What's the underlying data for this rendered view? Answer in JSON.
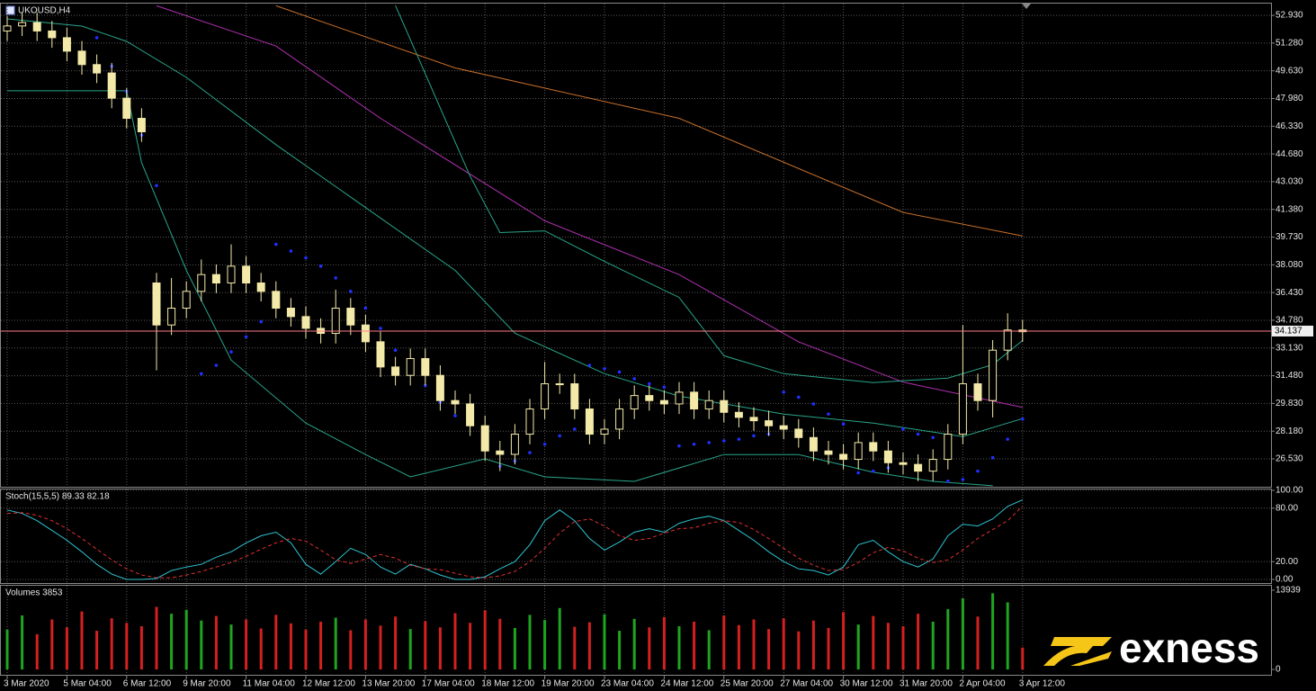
{
  "chart_data": [
    {
      "type": "candlestick",
      "title": "UKOUSD,H4",
      "categories": [
        "3 Mar 2020",
        null,
        null,
        null,
        "5 Mar 04:00",
        null,
        null,
        null,
        "6 Mar 12:00",
        null,
        null,
        null,
        "9 Mar 20:00",
        null,
        null,
        null,
        "11 Mar 04:00",
        null,
        null,
        null,
        "12 Mar 12:00",
        null,
        null,
        null,
        "13 Mar 20:00",
        null,
        null,
        null,
        "17 Mar 04:00",
        null,
        null,
        null,
        "18 Mar 12:00",
        null,
        null,
        null,
        "19 Mar 20:00",
        null,
        null,
        null,
        "23 Mar 04:00",
        null,
        null,
        null,
        "24 Mar 12:00",
        null,
        null,
        null,
        "25 Mar 20:00",
        null,
        null,
        null,
        "27 Mar 04:00",
        null,
        null,
        null,
        "30 Mar 12:00",
        null,
        null,
        null,
        "31 Mar 20:00",
        null,
        null,
        null,
        "2 Apr 04:00",
        null,
        null,
        null,
        "3 Apr 12:00"
      ],
      "open": [
        52.0,
        52.3,
        52.5,
        52.0,
        51.6,
        50.8,
        50.0,
        49.5,
        48.0,
        46.8,
        37.0,
        34.5,
        35.5,
        36.5,
        37.5,
        37.0,
        38.0,
        37.0,
        36.5,
        35.5,
        35.0,
        34.3,
        34.0,
        35.5,
        34.5,
        33.5,
        32.0,
        31.5,
        32.5,
        31.5,
        30.0,
        29.8,
        28.5,
        27.0,
        26.8,
        28.0,
        29.5,
        31.0,
        31.0,
        29.5,
        28.0,
        28.3,
        29.5,
        30.3,
        30.0,
        29.8,
        30.5,
        29.5,
        30.0,
        29.3,
        29.0,
        28.8,
        28.5,
        28.3,
        27.8,
        27.0,
        26.8,
        26.5,
        27.5,
        27.0,
        26.3,
        26.2,
        25.8,
        26.5,
        28.0,
        31.0,
        30.0,
        33.0,
        34.2
      ],
      "high": [
        52.9,
        53.1,
        53.1,
        52.6,
        52.2,
        51.4,
        50.6,
        50.1,
        48.6,
        47.4,
        37.6,
        37.3,
        37.1,
        38.4,
        38.1,
        39.3,
        38.6,
        37.6,
        37.1,
        36.1,
        35.6,
        34.9,
        36.6,
        36.1,
        35.1,
        34.1,
        32.6,
        33.1,
        33.1,
        32.1,
        30.6,
        30.4,
        29.1,
        27.6,
        28.6,
        30.1,
        32.3,
        31.6,
        31.6,
        30.1,
        28.9,
        30.1,
        30.9,
        30.9,
        30.6,
        31.1,
        31.1,
        30.6,
        30.6,
        29.9,
        29.6,
        29.4,
        29.1,
        28.9,
        28.4,
        27.6,
        27.4,
        28.1,
        28.1,
        27.6,
        26.9,
        26.8,
        27.1,
        28.6,
        34.5,
        31.6,
        33.6,
        35.2,
        34.8
      ],
      "low": [
        51.4,
        51.7,
        51.4,
        51.0,
        50.2,
        49.4,
        48.9,
        47.4,
        46.2,
        45.4,
        31.8,
        33.9,
        34.9,
        35.9,
        36.4,
        36.4,
        36.4,
        35.9,
        34.9,
        34.4,
        33.7,
        33.4,
        33.4,
        33.9,
        32.9,
        31.4,
        30.9,
        30.9,
        30.9,
        29.4,
        29.2,
        27.9,
        26.4,
        25.8,
        26.2,
        27.4,
        28.9,
        30.4,
        28.9,
        27.4,
        27.4,
        27.7,
        28.9,
        29.4,
        29.2,
        29.2,
        28.9,
        28.9,
        28.7,
        28.4,
        28.2,
        27.9,
        27.7,
        27.2,
        26.4,
        26.2,
        25.9,
        25.9,
        26.4,
        25.7,
        25.6,
        25.2,
        25.2,
        25.9,
        27.4,
        29.4,
        29.0,
        32.4,
        33.5
      ],
      "close": [
        52.3,
        52.5,
        52.0,
        51.6,
        50.8,
        50.0,
        49.5,
        48.0,
        46.8,
        46.0,
        34.5,
        35.5,
        36.5,
        37.5,
        37.0,
        38.0,
        37.0,
        36.5,
        35.5,
        35.0,
        34.3,
        34.0,
        35.5,
        34.5,
        33.5,
        32.0,
        31.5,
        32.5,
        31.5,
        30.0,
        29.8,
        28.5,
        27.0,
        26.8,
        28.0,
        29.5,
        31.0,
        31.0,
        29.5,
        28.0,
        28.3,
        29.5,
        30.3,
        30.0,
        29.8,
        30.5,
        29.5,
        30.0,
        29.3,
        29.0,
        28.8,
        28.5,
        28.3,
        27.8,
        27.0,
        26.8,
        26.5,
        27.5,
        27.0,
        26.3,
        26.2,
        25.8,
        26.5,
        28.0,
        31.0,
        30.0,
        33.0,
        34.2,
        34.1
      ],
      "color": "#f3e9a8",
      "overlays": [
        {
          "color": "#c8702a",
          "x": [
            18,
            30,
            45,
            60,
            68
          ],
          "values": [
            53.5,
            49.8,
            46.8,
            41.2,
            39.8
          ]
        },
        {
          "color": "#b030b0",
          "x": [
            10,
            18,
            25,
            36,
            45,
            53,
            60,
            68
          ],
          "values": [
            53.5,
            51.1,
            46.8,
            40.7,
            37.5,
            33.5,
            31.1,
            29.6
          ]
        },
        {
          "color": "#2aa58a",
          "x": [
            26,
            31,
            33,
            36,
            40,
            45,
            48,
            52,
            58,
            63,
            66,
            68
          ],
          "values": [
            53.52,
            43.36,
            40.0,
            40.1,
            38.28,
            36.14,
            32.67,
            31.6,
            31.07,
            31.34,
            32.14,
            33.58
          ]
        },
        {
          "color": "#2aa58a",
          "x": [
            0,
            5,
            8,
            12,
            18,
            24,
            30,
            34,
            40,
            45,
            52,
            58,
            64,
            68
          ],
          "values": [
            52.72,
            52.29,
            51.38,
            49.24,
            45.23,
            41.49,
            37.75,
            34.01,
            31.6,
            30.27,
            29.2,
            28.66,
            27.86,
            28.93
          ]
        },
        {
          "color": "#2aa58a",
          "x": [
            0,
            8,
            9,
            12,
            15,
            20,
            24,
            27,
            32,
            36,
            42,
            48,
            53,
            58,
            62,
            66
          ],
          "values": [
            48.44,
            48.44,
            44.16,
            37.75,
            32.41,
            28.66,
            26.79,
            25.46,
            26.53,
            25.46,
            25.19,
            26.79,
            26.79,
            25.73,
            25.19,
            24.93
          ]
        }
      ],
      "sar": {
        "color": "#2030ff",
        "x": [
          6,
          7,
          8,
          9,
          10,
          13,
          14,
          15,
          16,
          17,
          18,
          19,
          20,
          21,
          22,
          23,
          24,
          25,
          26,
          27,
          28,
          29,
          30,
          31,
          33,
          34,
          35,
          36,
          37,
          38,
          39,
          40,
          41,
          42,
          43,
          44,
          45,
          46,
          47,
          48,
          49,
          50,
          51,
          52,
          53,
          54,
          55,
          56,
          57,
          58,
          59,
          60,
          61,
          62,
          63,
          64,
          65,
          66,
          67,
          68
        ],
        "values": [
          51.6,
          49.9,
          48.4,
          45.8,
          42.8,
          31.6,
          32.1,
          32.9,
          33.8,
          34.7,
          39.3,
          38.9,
          38.5,
          38.0,
          37.3,
          36.5,
          35.5,
          34.3,
          33.0,
          31.9,
          30.9,
          29.9,
          29.1,
          28.6,
          26.1,
          26.4,
          26.9,
          27.4,
          27.9,
          28.3,
          32.1,
          31.9,
          31.7,
          31.3,
          31.0,
          30.8,
          27.3,
          27.4,
          27.5,
          27.6,
          27.7,
          27.9,
          28.0,
          30.5,
          30.2,
          29.8,
          29.2,
          28.6,
          25.7,
          25.8,
          26.0,
          28.3,
          28.0,
          27.8,
          25.2,
          25.3,
          25.8,
          26.6,
          27.7,
          28.9
        ]
      },
      "last_price": {
        "value": 34.137,
        "label": "34.137",
        "color": "#ff7a8a"
      },
      "ylim": [
        24.87,
        53.63
      ],
      "yticks": [
        {
          "value": 52.93,
          "label": "52.930"
        },
        {
          "value": 51.28,
          "label": "51.280"
        },
        {
          "value": 49.63,
          "label": "49.630"
        },
        {
          "value": 47.98,
          "label": "47.980"
        },
        {
          "value": 46.33,
          "label": "46.330"
        },
        {
          "value": 44.68,
          "label": "44.680"
        },
        {
          "value": 43.03,
          "label": "43.030"
        },
        {
          "value": 41.38,
          "label": "41.380"
        },
        {
          "value": 39.73,
          "label": "39.730"
        },
        {
          "value": 38.08,
          "label": "38.080"
        },
        {
          "value": 36.43,
          "label": "36.430"
        },
        {
          "value": 34.78,
          "label": "34.780"
        },
        {
          "value": 33.13,
          "label": "33.130"
        },
        {
          "value": 31.48,
          "label": "31.480"
        },
        {
          "value": 29.83,
          "label": "29.830"
        },
        {
          "value": 28.18,
          "label": "28.180"
        },
        {
          "value": 26.53,
          "label": "26.530"
        }
      ],
      "grid": true
    },
    {
      "type": "line",
      "title": "Stoch(15,5,5) 89.33 82.18",
      "series": [
        {
          "color": "#2ec4d0",
          "values": [
            78,
            74,
            66,
            55,
            44,
            31,
            17,
            6,
            0,
            0,
            1,
            10,
            14,
            17,
            25,
            31,
            41,
            49,
            53,
            41,
            17,
            6,
            20,
            35,
            28,
            14,
            6,
            17,
            12,
            5,
            0,
            0,
            3,
            12,
            20,
            39,
            66,
            78,
            66,
            46,
            33,
            42,
            53,
            57,
            53,
            63,
            68,
            71,
            66,
            55,
            44,
            31,
            20,
            12,
            10,
            5,
            14,
            39,
            44,
            31,
            20,
            14,
            23,
            49,
            62,
            60,
            68,
            82,
            89.33
          ]
        },
        {
          "color": "#e03030",
          "dash": true,
          "values": [
            74,
            75,
            72,
            66,
            57,
            46,
            34,
            22,
            12,
            5,
            2,
            2,
            5,
            9,
            14,
            19,
            26,
            34,
            41,
            46,
            43,
            33,
            22,
            18,
            23,
            28,
            24,
            16,
            12,
            11,
            7,
            3,
            2,
            4,
            9,
            20,
            35,
            52,
            65,
            68,
            60,
            49,
            44,
            46,
            52,
            57,
            58,
            63,
            66,
            64,
            56,
            46,
            35,
            24,
            16,
            10,
            11,
            19,
            30,
            36,
            32,
            24,
            19,
            22,
            33,
            46,
            56,
            66,
            82.18
          ]
        }
      ],
      "ylim": [
        -4,
        101
      ],
      "yticks": [
        {
          "value": 100,
          "label": "100.00"
        },
        {
          "value": 80,
          "label": "80.00"
        },
        {
          "value": 20,
          "label": "20.00"
        },
        {
          "value": 0,
          "label": "0.00"
        }
      ],
      "grid": true
    },
    {
      "type": "bar",
      "title": "Volumes 3853",
      "values": [
        7000,
        9500,
        6200,
        8800,
        7400,
        10200,
        6800,
        9000,
        8200,
        7600,
        11000,
        9800,
        10500,
        8600,
        9400,
        7900,
        8800,
        7200,
        9600,
        8100,
        7000,
        8400,
        9100,
        6900,
        8800,
        7700,
        9300,
        7100,
        8500,
        7400,
        9900,
        8200,
        10400,
        8900,
        7300,
        9600,
        8700,
        10800,
        7500,
        8300,
        9700,
        6800,
        8900,
        7400,
        9200,
        7600,
        8400,
        6900,
        9500,
        7800,
        8800,
        7100,
        9000,
        6700,
        8600,
        7300,
        10100,
        7900,
        9400,
        8200,
        7600,
        9800,
        8400,
        10600,
        12500,
        9300,
        13400,
        11800,
        3853
      ],
      "up_color": "#1fa51f",
      "down_color": "#d42020",
      "ylim": [
        -940,
        14722
      ],
      "yticks": [
        13939,
        0
      ],
      "grid": false
    }
  ],
  "brand": "exness"
}
